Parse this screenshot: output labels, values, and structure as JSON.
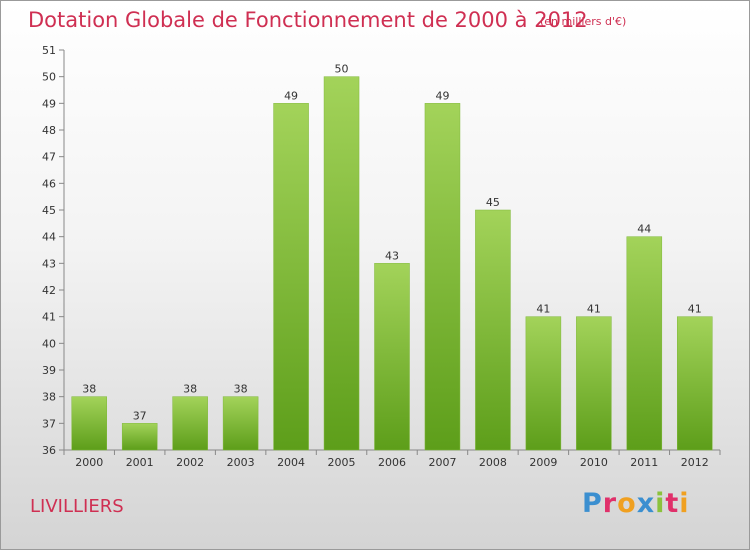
{
  "header": {
    "title": "Dotation Globale de Fonctionnement de 2000 à 2012",
    "unit": "(en milliers d'€)"
  },
  "footer": {
    "commune": "LIVILLIERS",
    "logo": "Proxiti",
    "logo_colors": [
      "#3b8fd0",
      "#e0306a",
      "#f0a020",
      "#3b8fd0",
      "#8bc23c",
      "#e0306a",
      "#f0a020"
    ]
  },
  "chart_data": {
    "type": "bar",
    "categories": [
      "2000",
      "2001",
      "2002",
      "2003",
      "2004",
      "2005",
      "2006",
      "2007",
      "2008",
      "2009",
      "2010",
      "2011",
      "2012"
    ],
    "values": [
      38,
      37,
      38,
      38,
      49,
      50,
      43,
      49,
      45,
      41,
      41,
      44,
      41
    ],
    "title": "Dotation Globale de Fonctionnement de 2000 à 2012",
    "ylim": [
      36,
      51
    ],
    "yticks": [
      36,
      37,
      38,
      39,
      40,
      41,
      42,
      43,
      44,
      45,
      46,
      47,
      48,
      49,
      50,
      51
    ],
    "grid": false,
    "bar_color_top": "#a3d35a",
    "bar_color_bottom": "#5d9e1a"
  }
}
